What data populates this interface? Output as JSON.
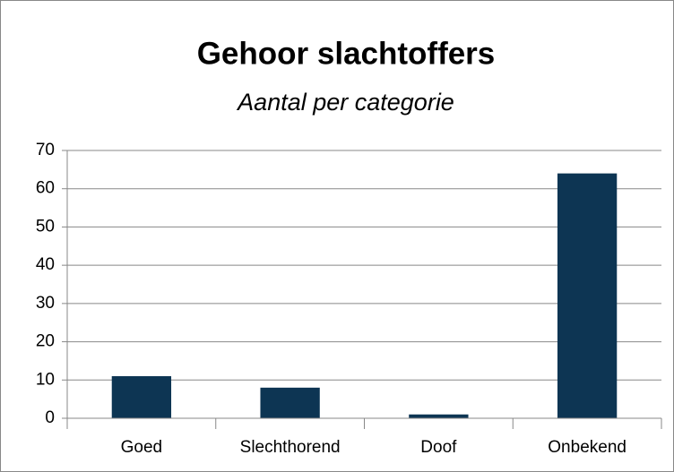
{
  "chart_data": {
    "type": "bar",
    "title": "Gehoor slachtoffers",
    "subtitle": "Aantal per categorie",
    "categories": [
      "Goed",
      "Slechthorend",
      "Doof",
      "Onbekend"
    ],
    "values": [
      11,
      8,
      1,
      64
    ],
    "color": "#0d3553",
    "ylim": [
      0,
      70
    ],
    "yticks": [
      0,
      10,
      20,
      30,
      40,
      50,
      60,
      70
    ],
    "grid": true
  }
}
